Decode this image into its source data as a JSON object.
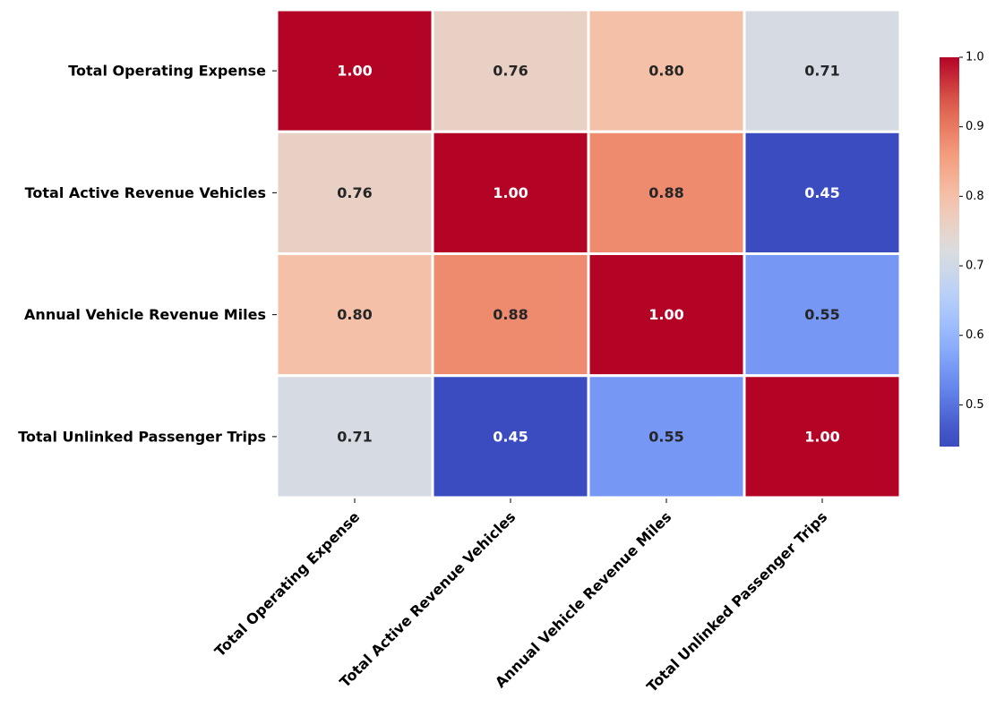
{
  "chart_data": {
    "type": "heatmap",
    "title": "",
    "xlabel": "",
    "ylabel": "",
    "x_categories": [
      "Total Operating Expense",
      "Total Active Revenue Vehicles",
      "Annual Vehicle Revenue Miles",
      "Total Unlinked Passenger Trips"
    ],
    "y_categories": [
      "Total Operating Expense",
      "Total Active Revenue Vehicles",
      "Annual Vehicle Revenue Miles",
      "Total Unlinked Passenger Trips"
    ],
    "values": [
      [
        1.0,
        0.76,
        0.8,
        0.71
      ],
      [
        0.76,
        1.0,
        0.88,
        0.45
      ],
      [
        0.8,
        0.88,
        1.0,
        0.55
      ],
      [
        0.71,
        0.45,
        0.55,
        1.0
      ]
    ],
    "cell_labels": [
      [
        "1.00",
        "0.76",
        "0.80",
        "0.71"
      ],
      [
        "0.76",
        "1.00",
        "0.88",
        "0.45"
      ],
      [
        "0.80",
        "0.88",
        "1.00",
        "0.55"
      ],
      [
        "0.71",
        "0.45",
        "0.55",
        "1.00"
      ]
    ],
    "colormap": "coolwarm",
    "vmin": 0.45,
    "vmax": 1.0,
    "colorbar_ticks": [
      0.5,
      0.6,
      0.7,
      0.8,
      0.9,
      1.0
    ],
    "colorbar_tick_labels": [
      "0.5",
      "0.6",
      "0.7",
      "0.8",
      "0.9",
      "1.0"
    ],
    "cell_border_color": "#ffffff",
    "legend": "colorbar-right"
  }
}
